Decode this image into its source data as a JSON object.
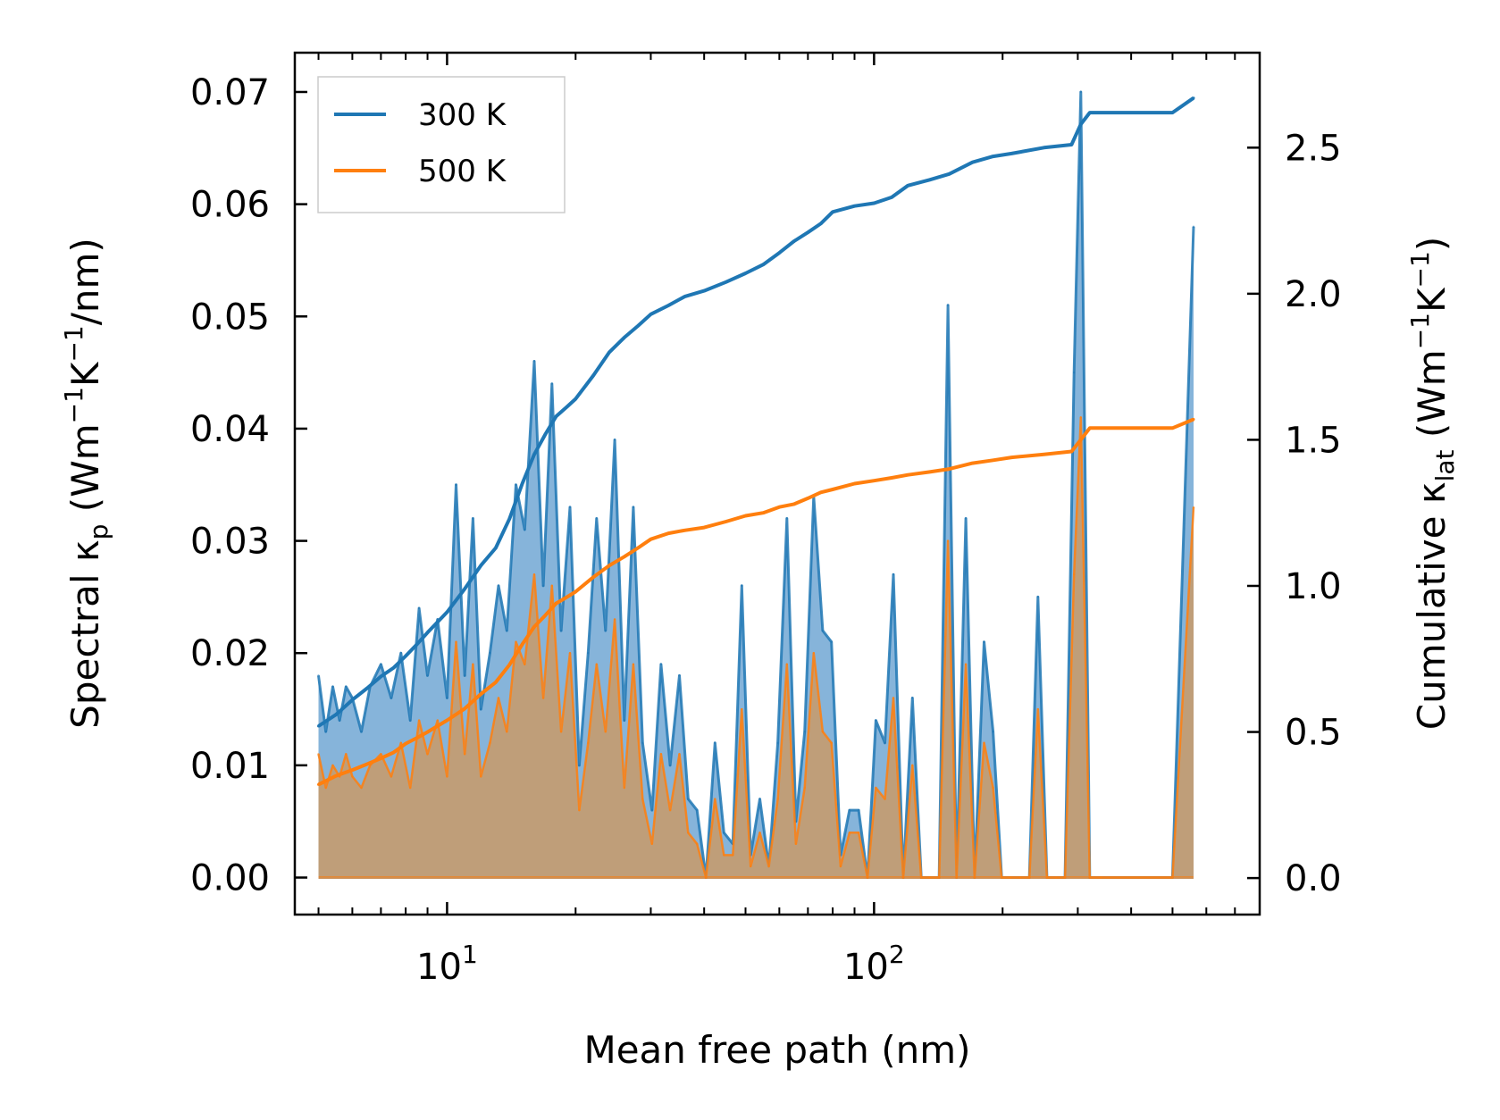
{
  "chart_data": {
    "type": "line",
    "xlabel": "Mean free path (nm)",
    "xscale": "log",
    "xlim": [
      4.4,
      800
    ],
    "x_ticks": [
      {
        "value": 10,
        "base": "10",
        "exp": "1"
      },
      {
        "value": 100,
        "base": "10",
        "exp": "2"
      }
    ],
    "y_left": {
      "label_parts": [
        "Spectral κ",
        "p",
        " (Wm",
        "−1",
        "K",
        "−1",
        "/nm)"
      ],
      "lim": [
        -0.0033,
        0.0735
      ],
      "ticks": [
        0.0,
        0.01,
        0.02,
        0.03,
        0.04,
        0.05,
        0.06,
        0.07
      ],
      "tick_labels": [
        "0.00",
        "0.01",
        "0.02",
        "0.03",
        "0.04",
        "0.05",
        "0.06",
        "0.07"
      ]
    },
    "y_right": {
      "label_parts": [
        "Cumulative κ",
        "lat",
        " (Wm",
        "−1",
        "K",
        "−1",
        ")"
      ],
      "lim": [
        -0.125,
        2.825
      ],
      "ticks": [
        0.0,
        0.5,
        1.0,
        1.5,
        2.0,
        2.5
      ],
      "tick_labels": [
        "0.0",
        "0.5",
        "1.0",
        "1.5",
        "2.0",
        "2.5"
      ]
    },
    "legend": {
      "position": "top-left",
      "entries": [
        "300 K",
        "500 K"
      ]
    },
    "colors": {
      "300 K": "#1f77b4",
      "500 K": "#ff7f0e",
      "fill_300": "#7fb0d8",
      "fill_500": "#c59b6e"
    },
    "series": [
      {
        "name": "300 K",
        "kind": "spectral",
        "axis": "left",
        "x": [
          5.0,
          5.2,
          5.4,
          5.6,
          5.8,
          6.0,
          6.3,
          6.6,
          7.0,
          7.4,
          7.8,
          8.2,
          8.6,
          9.0,
          9.5,
          10.0,
          10.5,
          11.0,
          11.5,
          12.0,
          12.6,
          13.2,
          13.8,
          14.5,
          15.2,
          16.0,
          16.8,
          17.6,
          18.5,
          19.4,
          20.4,
          21.4,
          22.4,
          23.5,
          24.7,
          26.0,
          27.3,
          28.7,
          30.2,
          31.7,
          33.3,
          35.0,
          36.7,
          38.5,
          40.4,
          42.4,
          44.5,
          46.7,
          49.0,
          51.4,
          54.0,
          56.7,
          59.5,
          62.5,
          65.6,
          68.8,
          72.2,
          75.8,
          79.5,
          83.5,
          87.6,
          92.0,
          96.5,
          101.0,
          106.0,
          111.0,
          117.0,
          123.0,
          129.0,
          135.0,
          142.0,
          149.0,
          156.0,
          164.0,
          172.0,
          181.0,
          190.0,
          199.0,
          209.0,
          220.0,
          231.0,
          242.0,
          254.0,
          267.0,
          280.0,
          294.0,
          305.0,
          320.0,
          340.0,
          500.0,
          560.0
        ],
        "values": [
          0.018,
          0.013,
          0.017,
          0.014,
          0.017,
          0.016,
          0.013,
          0.017,
          0.019,
          0.016,
          0.02,
          0.014,
          0.024,
          0.018,
          0.023,
          0.016,
          0.035,
          0.018,
          0.032,
          0.015,
          0.02,
          0.026,
          0.022,
          0.035,
          0.031,
          0.046,
          0.026,
          0.044,
          0.022,
          0.033,
          0.01,
          0.02,
          0.032,
          0.022,
          0.039,
          0.014,
          0.033,
          0.012,
          0.006,
          0.019,
          0.01,
          0.018,
          0.007,
          0.006,
          0.0,
          0.012,
          0.004,
          0.003,
          0.026,
          0.002,
          0.007,
          0.001,
          0.012,
          0.032,
          0.005,
          0.013,
          0.034,
          0.022,
          0.021,
          0.002,
          0.006,
          0.006,
          0.0,
          0.014,
          0.012,
          0.027,
          0.0,
          0.016,
          0.0,
          0.0,
          0.0,
          0.051,
          0.0,
          0.032,
          0.0,
          0.021,
          0.013,
          0.0,
          0.0,
          0.0,
          0.0,
          0.025,
          0.0,
          0.0,
          0.0,
          0.045,
          0.07,
          0.0,
          0.0,
          0.0,
          0.058
        ]
      },
      {
        "name": "500 K",
        "kind": "spectral",
        "axis": "left",
        "x": [
          5.0,
          5.2,
          5.4,
          5.6,
          5.8,
          6.0,
          6.3,
          6.6,
          7.0,
          7.4,
          7.8,
          8.2,
          8.6,
          9.0,
          9.5,
          10.0,
          10.5,
          11.0,
          11.5,
          12.0,
          12.6,
          13.2,
          13.8,
          14.5,
          15.2,
          16.0,
          16.8,
          17.6,
          18.5,
          19.4,
          20.4,
          21.4,
          22.4,
          23.5,
          24.7,
          26.0,
          27.3,
          28.7,
          30.2,
          31.7,
          33.3,
          35.0,
          36.7,
          38.5,
          40.4,
          42.4,
          44.5,
          46.7,
          49.0,
          51.4,
          54.0,
          56.7,
          59.5,
          62.5,
          65.6,
          68.8,
          72.2,
          75.8,
          79.5,
          83.5,
          87.6,
          92.0,
          96.5,
          101.0,
          106.0,
          111.0,
          117.0,
          123.0,
          129.0,
          135.0,
          142.0,
          149.0,
          156.0,
          164.0,
          172.0,
          181.0,
          190.0,
          199.0,
          209.0,
          220.0,
          231.0,
          242.0,
          254.0,
          267.0,
          280.0,
          294.0,
          305.0,
          320.0,
          340.0,
          500.0,
          560.0
        ],
        "values": [
          0.011,
          0.008,
          0.01,
          0.009,
          0.011,
          0.009,
          0.008,
          0.01,
          0.011,
          0.009,
          0.012,
          0.008,
          0.014,
          0.011,
          0.014,
          0.009,
          0.021,
          0.011,
          0.019,
          0.009,
          0.012,
          0.016,
          0.013,
          0.021,
          0.019,
          0.027,
          0.016,
          0.026,
          0.013,
          0.02,
          0.006,
          0.012,
          0.019,
          0.013,
          0.023,
          0.008,
          0.019,
          0.007,
          0.003,
          0.011,
          0.006,
          0.011,
          0.004,
          0.003,
          0.0,
          0.007,
          0.002,
          0.002,
          0.015,
          0.001,
          0.004,
          0.001,
          0.007,
          0.019,
          0.003,
          0.008,
          0.02,
          0.013,
          0.012,
          0.001,
          0.004,
          0.004,
          0.0,
          0.008,
          0.007,
          0.016,
          0.0,
          0.01,
          0.0,
          0.0,
          0.0,
          0.03,
          0.0,
          0.019,
          0.0,
          0.012,
          0.008,
          0.0,
          0.0,
          0.0,
          0.0,
          0.015,
          0.0,
          0.0,
          0.0,
          0.027,
          0.041,
          0.0,
          0.0,
          0.0,
          0.033
        ]
      },
      {
        "name": "300 K",
        "kind": "cumulative",
        "axis": "right",
        "x": [
          5.0,
          5.5,
          6.0,
          6.5,
          7.0,
          7.5,
          8.0,
          8.5,
          9.0,
          10.0,
          11.0,
          12.0,
          13.0,
          14.0,
          15.0,
          16.0,
          17.0,
          18.0,
          19.0,
          20.0,
          22.0,
          24.0,
          26.0,
          28.0,
          30.0,
          33.0,
          36.0,
          40.0,
          45.0,
          50.0,
          55.0,
          60.0,
          65.0,
          70.0,
          75.0,
          80.0,
          90.0,
          100.0,
          110.0,
          120.0,
          135.0,
          150.0,
          170.0,
          190.0,
          210.0,
          250.0,
          290.0,
          305.0,
          320.0,
          500.0,
          560.0
        ],
        "values": [
          0.52,
          0.56,
          0.61,
          0.65,
          0.69,
          0.72,
          0.76,
          0.8,
          0.84,
          0.91,
          0.99,
          1.07,
          1.13,
          1.23,
          1.35,
          1.45,
          1.52,
          1.58,
          1.61,
          1.64,
          1.72,
          1.8,
          1.85,
          1.89,
          1.93,
          1.96,
          1.99,
          2.01,
          2.04,
          2.07,
          2.1,
          2.14,
          2.18,
          2.21,
          2.24,
          2.28,
          2.3,
          2.31,
          2.33,
          2.37,
          2.39,
          2.41,
          2.45,
          2.47,
          2.48,
          2.5,
          2.51,
          2.58,
          2.62,
          2.62,
          2.67
        ]
      },
      {
        "name": "500 K",
        "kind": "cumulative",
        "axis": "right",
        "x": [
          5.0,
          5.5,
          6.0,
          6.5,
          7.0,
          7.5,
          8.0,
          8.5,
          9.0,
          10.0,
          11.0,
          12.0,
          13.0,
          14.0,
          15.0,
          16.0,
          17.0,
          18.0,
          19.0,
          20.0,
          22.0,
          24.0,
          26.0,
          28.0,
          30.0,
          33.0,
          36.0,
          40.0,
          45.0,
          50.0,
          55.0,
          60.0,
          65.0,
          70.0,
          75.0,
          80.0,
          90.0,
          100.0,
          110.0,
          120.0,
          135.0,
          150.0,
          170.0,
          190.0,
          210.0,
          250.0,
          290.0,
          305.0,
          320.0,
          500.0,
          560.0
        ],
        "values": [
          0.32,
          0.35,
          0.37,
          0.39,
          0.41,
          0.43,
          0.46,
          0.48,
          0.5,
          0.54,
          0.58,
          0.63,
          0.67,
          0.73,
          0.8,
          0.86,
          0.9,
          0.94,
          0.96,
          0.98,
          1.03,
          1.07,
          1.1,
          1.13,
          1.16,
          1.18,
          1.19,
          1.2,
          1.22,
          1.24,
          1.25,
          1.27,
          1.28,
          1.3,
          1.32,
          1.33,
          1.35,
          1.36,
          1.37,
          1.38,
          1.39,
          1.4,
          1.42,
          1.43,
          1.44,
          1.45,
          1.46,
          1.5,
          1.54,
          1.54,
          1.57
        ]
      }
    ]
  }
}
